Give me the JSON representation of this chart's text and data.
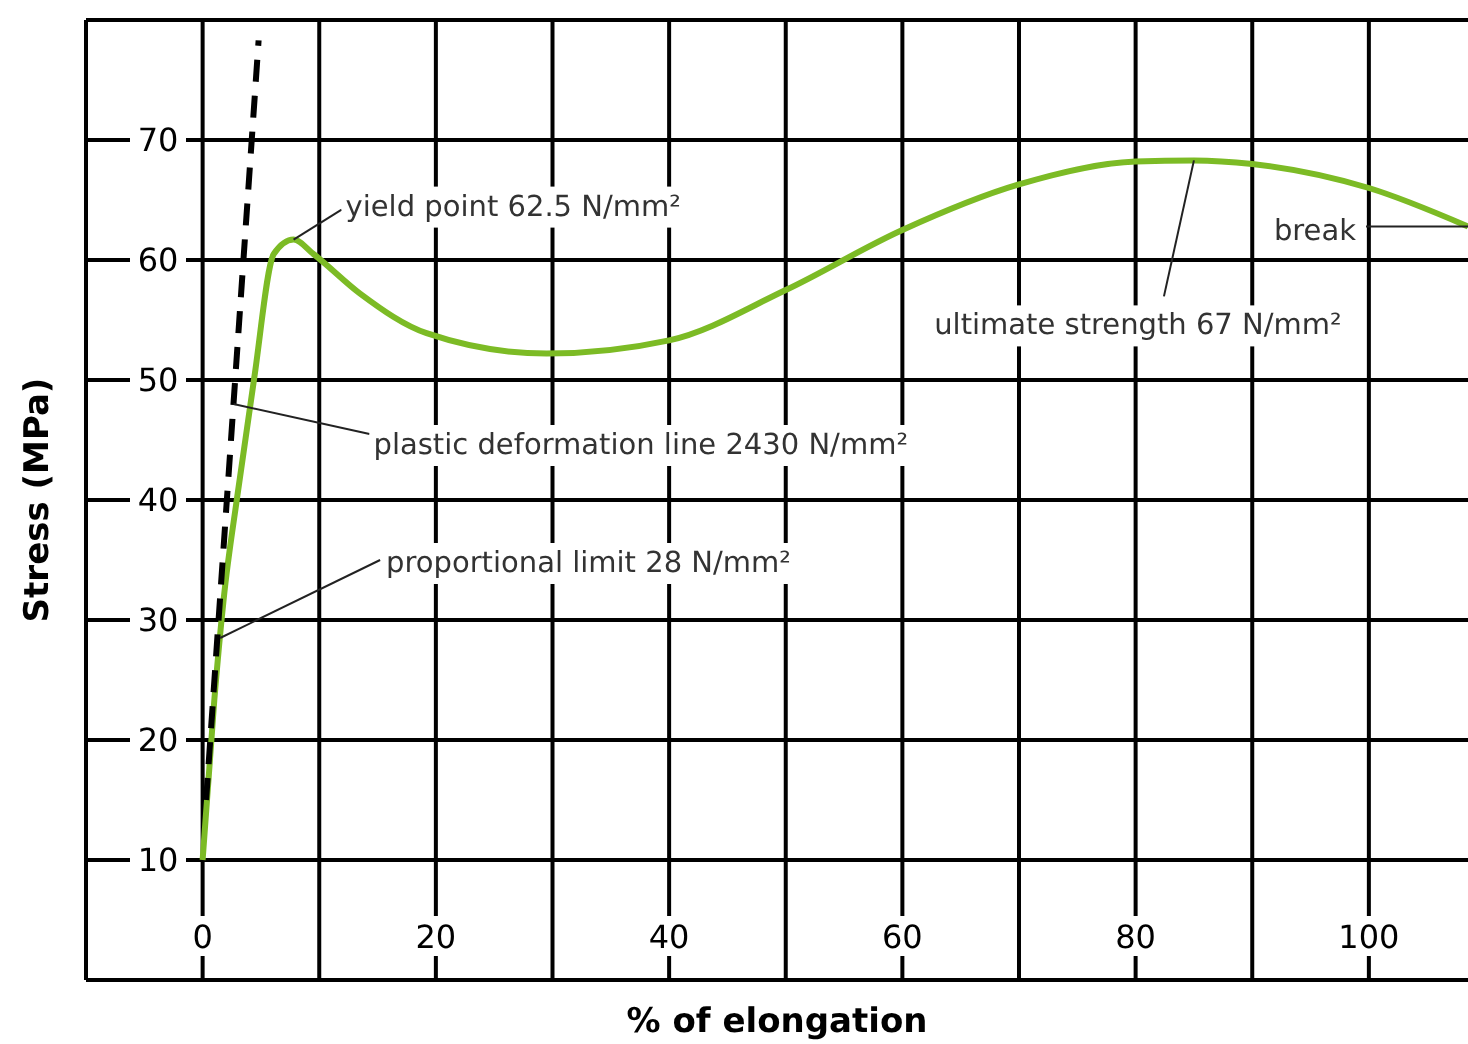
{
  "chart_data": {
    "type": "line",
    "xlabel": "% of elongation",
    "ylabel": "Stress (MPa)",
    "xlim": [
      -10,
      108.5
    ],
    "xticks": [
      {
        "value": -10,
        "label": null
      },
      0,
      {
        "value": 10,
        "label": null
      },
      20,
      {
        "value": 30,
        "label": null
      },
      40,
      {
        "value": 50,
        "label": null
      },
      60,
      {
        "value": 70,
        "label": null
      },
      80,
      {
        "value": 90,
        "label": null
      },
      100
    ],
    "ylim": [
      0,
      80
    ],
    "yticks": [
      {
        "value": 0,
        "label": null
      },
      10,
      20,
      30,
      40,
      50,
      60,
      70,
      {
        "value": 80,
        "label": null
      }
    ],
    "grid": true,
    "marker": "none",
    "series": [
      {
        "color": "#7cbb25",
        "x": [
          0,
          1,
          1.8,
          3,
          4.4,
          6.1,
          7.8,
          9.5,
          13.5,
          19.2,
          29.5,
          40,
          50,
          60,
          70,
          80,
          85,
          90,
          100,
          108.5
        ],
        "values": [
          10,
          23.3,
          31.7,
          40.5,
          50,
          60.5,
          61.7,
          60.5,
          57.2,
          53.9,
          52.2,
          53.3,
          57.5,
          62.5,
          66.3,
          68.2,
          68.3,
          68,
          66,
          62.8
        ]
      },
      {
        "color": "#000000",
        "line_style": "dashed",
        "x": [
          0.3,
          4.8
        ],
        "values": [
          15,
          78.3
        ]
      }
    ],
    "annotations": [
      {
        "text": "yield point 62.5 N/mm²",
        "x": 7.8,
        "y": 61.7
      },
      {
        "text": "plastic deformation line 2430 N/mm²",
        "x": 2.65,
        "y": 48
      },
      {
        "text": "proportional limit 28 N/mm²",
        "x": 1.5,
        "y": 28.5
      },
      {
        "text": "ultimate strength 67 N/mm²",
        "x": 85,
        "y": 68.3
      },
      {
        "text": "break",
        "x": 108.5,
        "y": 62.8
      }
    ]
  }
}
